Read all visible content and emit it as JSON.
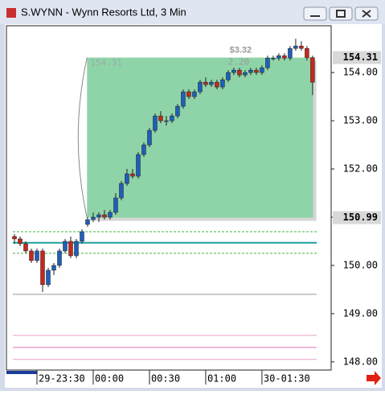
{
  "window": {
    "title": "S.WYNN - Wynn Resorts Ltd, 3 Min"
  },
  "chart_data": {
    "type": "candlestick",
    "up_color": "#1f5fb8",
    "down_color": "#c4281c",
    "open": [
      150.6,
      150.55,
      150.45,
      150.3,
      150.1,
      150.3,
      149.6,
      149.9,
      150.0,
      150.3,
      150.5,
      150.2,
      150.5,
      150.85,
      150.95,
      151.0,
      151.05,
      151.0,
      151.1,
      151.4,
      151.7,
      151.9,
      151.85,
      152.3,
      152.5,
      152.8,
      153.1,
      153.0,
      153.0,
      153.1,
      153.3,
      153.6,
      153.5,
      153.6,
      153.8,
      153.75,
      153.8,
      153.7,
      153.85,
      154.0,
      154.05,
      153.95,
      154.0,
      154.05,
      154.0,
      154.1,
      154.3,
      154.3,
      154.35,
      154.3,
      154.5,
      154.55,
      154.5,
      154.31
    ],
    "high": [
      150.65,
      150.6,
      150.5,
      150.35,
      150.35,
      150.35,
      149.95,
      150.05,
      150.35,
      150.55,
      150.6,
      150.55,
      150.75,
      151.0,
      151.1,
      151.1,
      151.15,
      151.15,
      151.5,
      151.75,
      152.0,
      152.0,
      152.35,
      152.55,
      152.85,
      153.15,
      153.2,
      153.1,
      153.15,
      153.35,
      153.65,
      153.65,
      153.65,
      153.85,
      153.9,
      153.85,
      153.85,
      153.9,
      154.05,
      154.1,
      154.1,
      154.05,
      154.1,
      154.1,
      154.15,
      154.35,
      154.35,
      154.4,
      154.4,
      154.55,
      154.7,
      154.65,
      154.55,
      154.35
    ],
    "low": [
      150.45,
      150.4,
      150.25,
      150.05,
      150.05,
      149.45,
      149.55,
      149.8,
      149.95,
      150.25,
      150.15,
      150.15,
      150.45,
      150.8,
      150.9,
      150.9,
      150.95,
      150.95,
      151.05,
      151.35,
      151.65,
      151.8,
      151.8,
      152.25,
      152.45,
      152.75,
      152.95,
      152.9,
      152.95,
      153.05,
      153.25,
      153.45,
      153.45,
      153.55,
      153.7,
      153.7,
      153.65,
      153.65,
      153.8,
      153.95,
      153.9,
      153.9,
      153.95,
      153.95,
      153.95,
      154.05,
      154.25,
      154.25,
      154.25,
      154.25,
      154.45,
      154.45,
      154.25,
      153.53
    ],
    "close": [
      150.55,
      150.45,
      150.3,
      150.1,
      150.3,
      149.6,
      149.9,
      150.0,
      150.3,
      150.5,
      150.2,
      150.5,
      150.7,
      150.95,
      151.0,
      151.05,
      151.0,
      151.1,
      151.4,
      151.7,
      151.9,
      151.85,
      152.3,
      152.5,
      152.8,
      153.1,
      153.0,
      153.0,
      153.1,
      153.3,
      153.6,
      153.5,
      153.6,
      153.8,
      153.75,
      153.8,
      153.7,
      153.85,
      154.0,
      154.05,
      153.95,
      154.0,
      154.05,
      154.0,
      154.1,
      154.3,
      154.3,
      154.35,
      154.3,
      154.5,
      154.55,
      154.5,
      154.31,
      153.8
    ],
    "xlim": [
      -1.43,
      56.3
    ],
    "xticks": [
      {
        "value": 4,
        "label": "29-23:30"
      },
      {
        "value": 14,
        "label": "00:00"
      },
      {
        "value": 24,
        "label": "00:30"
      },
      {
        "value": 34,
        "label": "01:00"
      },
      {
        "value": 44,
        "label": "30-01:30"
      }
    ],
    "ylim": [
      147.83,
      154.97
    ],
    "yticks": [
      {
        "value": 148,
        "label": "148.00"
      },
      {
        "value": 149,
        "label": "149.00"
      },
      {
        "value": 150,
        "label": "150.00"
      },
      {
        "value": 151,
        "label": "151.00"
      },
      {
        "value": 152,
        "label": "152.00"
      },
      {
        "value": 153,
        "label": "153.00"
      },
      {
        "value": 154,
        "label": "154.00"
      }
    ],
    "grid": false,
    "price_markers": [
      154.31,
      150.99
    ],
    "levels": [
      {
        "value": 150.7,
        "color": "#3cb43c",
        "style": "dashed"
      },
      {
        "value": 150.47,
        "color": "#1ea0a0",
        "style": "solid"
      },
      {
        "value": 150.25,
        "color": "#3cb43c",
        "style": "dashed"
      },
      {
        "value": 149.4,
        "color": "#999999",
        "style": "solid"
      },
      {
        "value": 148.55,
        "color": "#e8a0c8",
        "style": "solid"
      },
      {
        "value": 148.3,
        "color": "#e070b0",
        "style": "solid"
      },
      {
        "value": 148.05,
        "color": "#e8a0c8",
        "style": "solid"
      }
    ],
    "measure": {
      "from": 150.99,
      "to": 154.31,
      "start": 12.9,
      "end": 53.1,
      "change": "$3.32",
      "percent": "2.20",
      "color": "#8fd4a8"
    }
  }
}
